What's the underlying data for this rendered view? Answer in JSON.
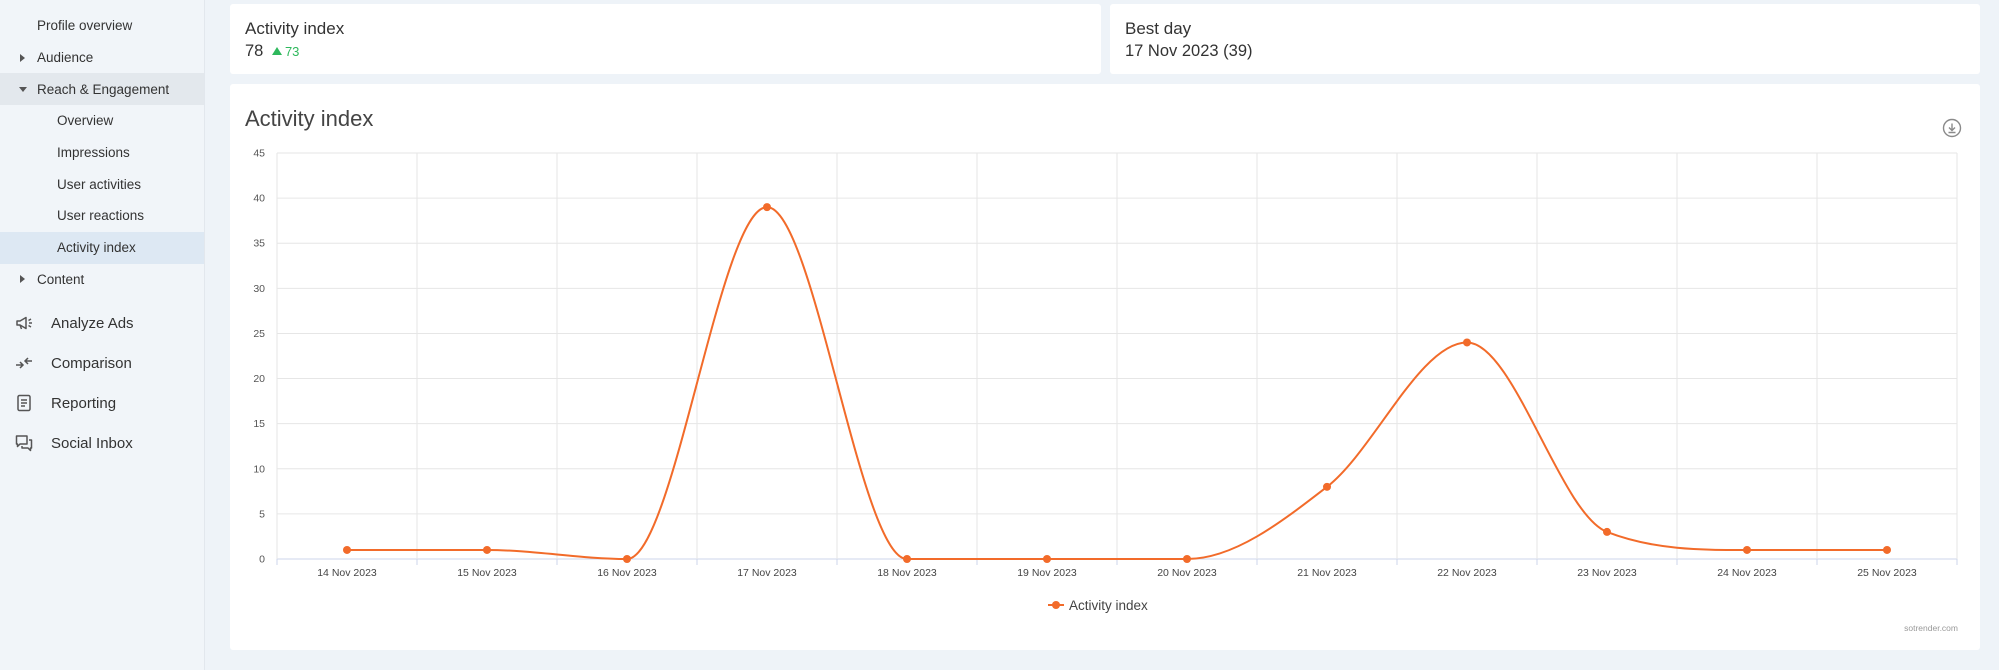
{
  "sidebar": {
    "sub_items": [
      {
        "label": "Profile overview",
        "level": 1,
        "arrow": "none",
        "state": ""
      },
      {
        "label": "Audience",
        "level": 1,
        "arrow": "right",
        "state": ""
      },
      {
        "label": "Reach & Engagement",
        "level": 1,
        "arrow": "down",
        "state": "open"
      },
      {
        "label": "Overview",
        "level": 2,
        "arrow": "none",
        "state": ""
      },
      {
        "label": "Impressions",
        "level": 2,
        "arrow": "none",
        "state": ""
      },
      {
        "label": "User activities",
        "level": 2,
        "arrow": "none",
        "state": ""
      },
      {
        "label": "User reactions",
        "level": 2,
        "arrow": "none",
        "state": ""
      },
      {
        "label": "Activity index",
        "level": 2,
        "arrow": "none",
        "state": "active"
      },
      {
        "label": "Content",
        "level": 1,
        "arrow": "right",
        "state": ""
      }
    ],
    "main_items": [
      {
        "label": "Analyze Ads",
        "icon": "megaphone-icon"
      },
      {
        "label": "Comparison",
        "icon": "compare-arrows-icon"
      },
      {
        "label": "Reporting",
        "icon": "report-document-icon"
      },
      {
        "label": "Social Inbox",
        "icon": "chat-bubbles-icon"
      }
    ]
  },
  "kpi_activity": {
    "title": "Activity index",
    "value": "78",
    "delta": "73"
  },
  "kpi_best_day": {
    "title": "Best day",
    "value": "17 Nov 2023 (39)"
  },
  "chart_card": {
    "title": "Activity index",
    "credit": "sotrender.com"
  },
  "colors": {
    "series": "#f26b2a",
    "delta_up": "#2eb85c",
    "active_nav": "#dde8f3"
  },
  "chart_data": {
    "type": "line",
    "title": "Activity index",
    "categories": [
      "14 Nov 2023",
      "15 Nov 2023",
      "16 Nov 2023",
      "17 Nov 2023",
      "18 Nov 2023",
      "19 Nov 2023",
      "20 Nov 2023",
      "21 Nov 2023",
      "22 Nov 2023",
      "23 Nov 2023",
      "24 Nov 2023",
      "25 Nov 2023"
    ],
    "series": [
      {
        "name": "Activity index",
        "values": [
          1,
          1,
          0,
          39,
          0,
          0,
          0,
          8,
          24,
          3,
          1,
          1
        ]
      }
    ],
    "ylim": [
      0,
      45
    ],
    "yticks": [
      0,
      5,
      10,
      15,
      20,
      25,
      30,
      35,
      40,
      45
    ],
    "grid": true,
    "legend": "bottom-center",
    "smooth": true
  }
}
